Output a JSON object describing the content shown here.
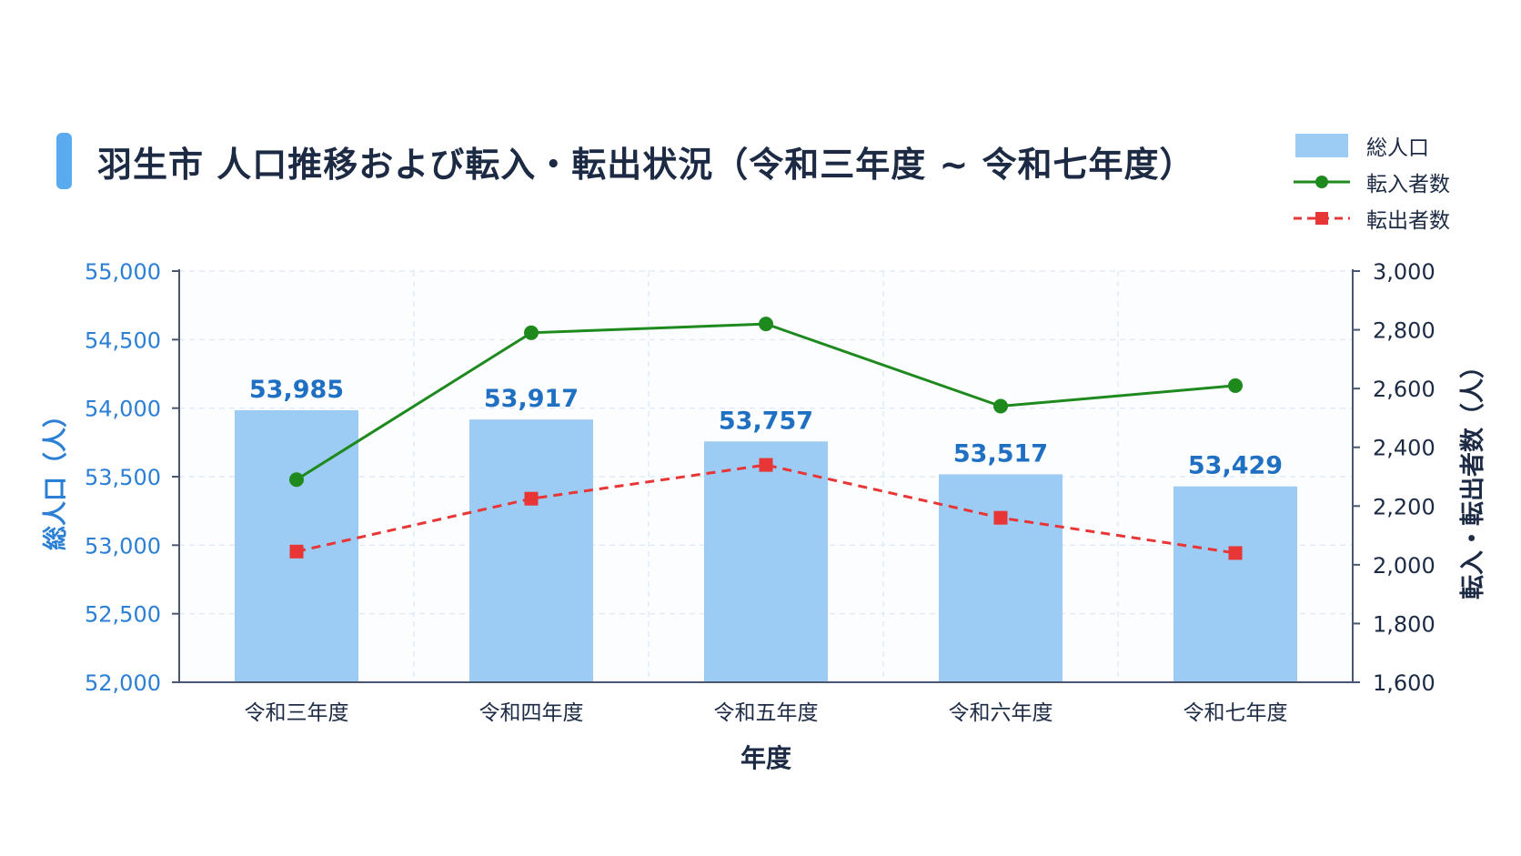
{
  "chart_data": {
    "type": "bar",
    "title": "羽生市 人口推移および転入・転出状況（令和三年度 ~ 令和七年度）",
    "xlabel": "年度",
    "ylabel_left": "総人口（人）",
    "ylabel_right": "転入・転出者数（人）",
    "categories": [
      "令和三年度",
      "令和四年度",
      "令和五年度",
      "令和六年度",
      "令和七年度"
    ],
    "ylim_left": [
      52000,
      55000
    ],
    "ylim_right": [
      1600,
      3000
    ],
    "yticks_left": [
      "52,000",
      "52,500",
      "53,000",
      "53,500",
      "54,000",
      "54,500",
      "55,000"
    ],
    "yticks_right": [
      "1,600",
      "1,800",
      "2,000",
      "2,200",
      "2,400",
      "2,600",
      "2,800",
      "3,000"
    ],
    "grid": true,
    "legend_position": "top-right",
    "series": [
      {
        "name": "総人口",
        "type": "bar",
        "axis": "left",
        "values": [
          53985,
          53917,
          53757,
          53517,
          53429
        ],
        "labels": [
          "53,985",
          "53,917",
          "53,757",
          "53,517",
          "53,429"
        ],
        "color": "#9ccbf3"
      },
      {
        "name": "転入者数",
        "type": "line",
        "axis": "right",
        "values": [
          2290,
          2790,
          2820,
          2540,
          2610
        ],
        "color": "#1e8a1e"
      },
      {
        "name": "転出者数",
        "type": "line",
        "axis": "right",
        "values": [
          2045,
          2225,
          2340,
          2160,
          2040
        ],
        "color": "#e83535"
      }
    ],
    "colors": {
      "left_axis_text": "#2b7fd4",
      "right_axis_text": "#1c2a44",
      "data_label": "#1f6fc2",
      "accent": "#5aaaf0"
    }
  }
}
